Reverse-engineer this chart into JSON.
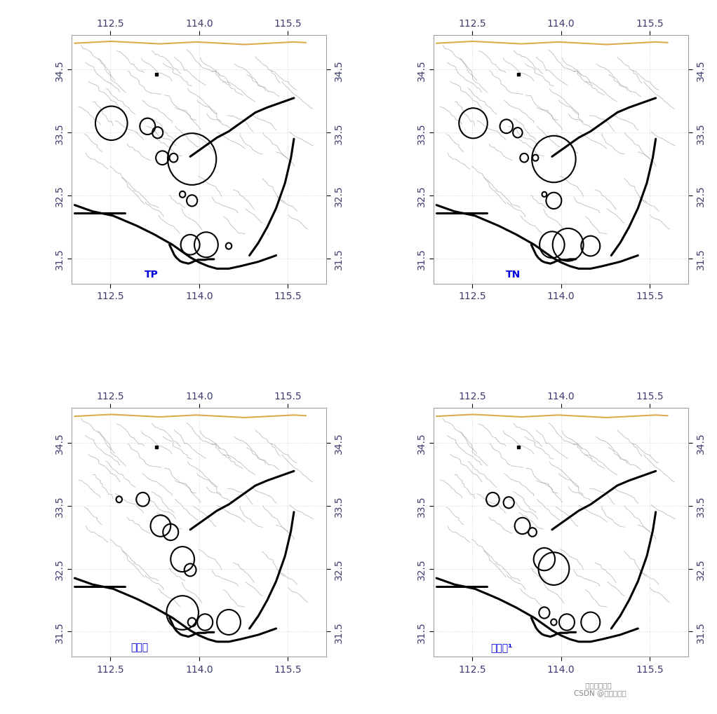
{
  "background_color": "#ffffff",
  "plot_facecolor": "#ffffff",
  "xlim": [
    111.85,
    116.15
  ],
  "ylim": [
    31.1,
    35.05
  ],
  "xticks": [
    112.5,
    114.0,
    115.5
  ],
  "yticks": [
    31.5,
    32.5,
    33.5,
    34.5
  ],
  "tick_color": "#3a3a6e",
  "tick_fontsize": 10,
  "label_color": "#0000dd",
  "label_fontsize": 10,
  "panels": [
    {
      "label": "TP",
      "label_lon": 113.2,
      "label_lat": 31.18,
      "circles": [
        {
          "lon": 112.52,
          "lat": 33.65,
          "r": 0.27
        },
        {
          "lon": 113.13,
          "lat": 33.6,
          "r": 0.13
        },
        {
          "lon": 113.3,
          "lat": 33.5,
          "r": 0.09
        },
        {
          "lon": 113.38,
          "lat": 33.1,
          "r": 0.11
        },
        {
          "lon": 113.57,
          "lat": 33.1,
          "r": 0.07
        },
        {
          "lon": 113.88,
          "lat": 33.08,
          "r": 0.41
        },
        {
          "lon": 113.72,
          "lat": 32.52,
          "r": 0.05
        },
        {
          "lon": 113.88,
          "lat": 32.42,
          "r": 0.09
        },
        {
          "lon": 113.85,
          "lat": 31.72,
          "r": 0.16
        },
        {
          "lon": 114.12,
          "lat": 31.72,
          "r": 0.2
        },
        {
          "lon": 114.5,
          "lat": 31.7,
          "r": 0.05
        }
      ]
    },
    {
      "label": "TN",
      "label_lon": 113.2,
      "label_lat": 31.18,
      "circles": [
        {
          "lon": 112.52,
          "lat": 33.65,
          "r": 0.24
        },
        {
          "lon": 113.08,
          "lat": 33.6,
          "r": 0.11
        },
        {
          "lon": 113.27,
          "lat": 33.5,
          "r": 0.08
        },
        {
          "lon": 113.38,
          "lat": 33.1,
          "r": 0.07
        },
        {
          "lon": 113.57,
          "lat": 33.1,
          "r": 0.05
        },
        {
          "lon": 113.88,
          "lat": 33.08,
          "r": 0.37
        },
        {
          "lon": 113.72,
          "lat": 32.52,
          "r": 0.04
        },
        {
          "lon": 113.88,
          "lat": 32.42,
          "r": 0.13
        },
        {
          "lon": 113.85,
          "lat": 31.72,
          "r": 0.21
        },
        {
          "lon": 114.12,
          "lat": 31.72,
          "r": 0.26
        },
        {
          "lon": 114.5,
          "lat": 31.7,
          "r": 0.16
        }
      ]
    },
    {
      "label": "透明度",
      "label_lon": 113.0,
      "label_lat": 31.18,
      "circles": [
        {
          "lon": 112.65,
          "lat": 33.6,
          "r": 0.05
        },
        {
          "lon": 113.05,
          "lat": 33.6,
          "r": 0.11
        },
        {
          "lon": 113.35,
          "lat": 33.18,
          "r": 0.17
        },
        {
          "lon": 113.52,
          "lat": 33.08,
          "r": 0.13
        },
        {
          "lon": 113.72,
          "lat": 32.65,
          "r": 0.2
        },
        {
          "lon": 113.85,
          "lat": 32.48,
          "r": 0.1
        },
        {
          "lon": 113.72,
          "lat": 31.8,
          "r": 0.27
        },
        {
          "lon": 113.88,
          "lat": 31.65,
          "r": 0.07
        },
        {
          "lon": 114.1,
          "lat": 31.65,
          "r": 0.13
        },
        {
          "lon": 114.5,
          "lat": 31.65,
          "r": 0.2
        }
      ]
    },
    {
      "label": "叶綠素¹",
      "label_lon": 113.0,
      "label_lat": 31.18,
      "circles": [
        {
          "lon": 112.85,
          "lat": 33.6,
          "r": 0.11
        },
        {
          "lon": 113.12,
          "lat": 33.55,
          "r": 0.09
        },
        {
          "lon": 113.35,
          "lat": 33.18,
          "r": 0.13
        },
        {
          "lon": 113.52,
          "lat": 33.08,
          "r": 0.07
        },
        {
          "lon": 113.72,
          "lat": 32.65,
          "r": 0.18
        },
        {
          "lon": 113.88,
          "lat": 32.5,
          "r": 0.26
        },
        {
          "lon": 113.72,
          "lat": 31.8,
          "r": 0.09
        },
        {
          "lon": 113.88,
          "lat": 31.65,
          "r": 0.05
        },
        {
          "lon": 114.1,
          "lat": 31.65,
          "r": 0.13
        },
        {
          "lon": 114.5,
          "lat": 31.65,
          "r": 0.16
        }
      ]
    }
  ],
  "small_square_lon": 113.28,
  "small_square_lat": 34.43,
  "border_main": {
    "x": [
      111.9,
      112.2,
      112.55,
      112.75,
      112.95,
      113.1,
      113.25,
      113.4,
      113.55,
      113.7,
      113.85,
      114.0,
      114.15,
      114.3,
      114.5,
      114.7,
      115.0,
      115.15,
      115.3
    ],
    "y": [
      32.35,
      32.25,
      32.18,
      32.1,
      32.02,
      31.95,
      31.88,
      31.8,
      31.72,
      31.62,
      31.52,
      31.44,
      31.38,
      31.34,
      31.34,
      31.38,
      31.45,
      31.5,
      31.55
    ]
  },
  "border_right": {
    "x": [
      114.85,
      115.0,
      115.15,
      115.3,
      115.45,
      115.55,
      115.6
    ],
    "y": [
      31.55,
      31.75,
      32.0,
      32.3,
      32.7,
      33.1,
      33.4
    ]
  },
  "border_right2": {
    "x": [
      113.85,
      114.0,
      114.15,
      114.3,
      114.5,
      114.65,
      114.8,
      114.95,
      115.15,
      115.3,
      115.45,
      115.6
    ],
    "y": [
      33.12,
      33.22,
      33.32,
      33.42,
      33.52,
      33.62,
      33.72,
      33.82,
      33.9,
      33.95,
      34.0,
      34.05
    ]
  },
  "border_bottom_join": {
    "x": [
      113.55,
      113.6,
      113.65,
      113.7,
      113.72,
      113.75,
      113.78,
      113.82,
      113.85,
      113.9,
      113.95,
      114.0,
      114.05,
      114.1,
      114.2,
      114.3,
      114.4
    ],
    "y": [
      31.72,
      31.65,
      31.58,
      31.52,
      31.48,
      31.45,
      31.42,
      31.4,
      31.38,
      31.37,
      31.36,
      31.35,
      31.34,
      31.34,
      31.34,
      31.34,
      31.34
    ]
  },
  "border_sw": {
    "x": [
      111.9,
      112.0,
      112.1,
      112.2,
      112.3,
      112.4,
      112.5,
      112.6
    ],
    "y": [
      32.35,
      32.32,
      32.3,
      32.28,
      32.28,
      32.28,
      32.28,
      32.28
    ]
  },
  "river_color": "#aaaaaa",
  "river_lw": 0.55,
  "border_lw": 2.2,
  "border_color": "#000000",
  "grid_color": "#999999",
  "grid_lw": 0.5,
  "grid_ls": ":"
}
